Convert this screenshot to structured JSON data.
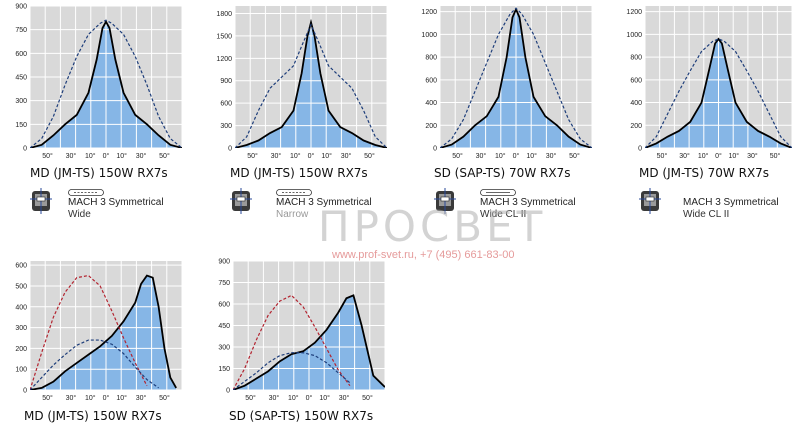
{
  "chart_data": [
    {
      "type": "line",
      "title": "MD (JM-TS) 150W RX7s",
      "legend_line1": "MACH 3 Symmetrical",
      "legend_line2": "Wide",
      "yticks": [
        0,
        150,
        300,
        450,
        600,
        750,
        900
      ],
      "ylim": [
        0,
        900
      ],
      "xlabels": [
        "50°",
        "30°",
        "10°",
        "0°",
        "10°",
        "30°",
        "50°"
      ],
      "series": [
        {
          "fill": true,
          "points": [
            [
              -65,
              0
            ],
            [
              -55,
              20
            ],
            [
              -45,
              80
            ],
            [
              -35,
              150
            ],
            [
              -25,
              210
            ],
            [
              -15,
              350
            ],
            [
              -8,
              560
            ],
            [
              -3,
              760
            ],
            [
              0,
              800
            ],
            [
              3,
              760
            ],
            [
              8,
              560
            ],
            [
              15,
              350
            ],
            [
              25,
              210
            ],
            [
              35,
              150
            ],
            [
              45,
              80
            ],
            [
              55,
              20
            ],
            [
              65,
              0
            ]
          ]
        },
        {
          "dashed": true,
          "points": [
            [
              -65,
              0
            ],
            [
              -55,
              60
            ],
            [
              -45,
              200
            ],
            [
              -35,
              400
            ],
            [
              -25,
              580
            ],
            [
              -15,
              720
            ],
            [
              -5,
              790
            ],
            [
              0,
              810
            ],
            [
              5,
              790
            ],
            [
              15,
              720
            ],
            [
              25,
              580
            ],
            [
              35,
              400
            ],
            [
              45,
              200
            ],
            [
              55,
              60
            ],
            [
              65,
              0
            ]
          ]
        }
      ]
    },
    {
      "type": "line",
      "title": "MD (JM-TS) 150W RX7s",
      "legend_line1": "MACH 3 Symmetrical",
      "legend_line2": "Narrow",
      "yticks": [
        0,
        300,
        600,
        900,
        1200,
        1500,
        1800
      ],
      "ylim": [
        0,
        1900
      ],
      "xlabels": [
        "50°",
        "30°",
        "10°",
        "0°",
        "10°",
        "30°",
        "50°"
      ],
      "series": [
        {
          "fill": true,
          "points": [
            [
              -65,
              0
            ],
            [
              -55,
              40
            ],
            [
              -45,
              100
            ],
            [
              -35,
              200
            ],
            [
              -25,
              280
            ],
            [
              -15,
              500
            ],
            [
              -8,
              1000
            ],
            [
              -3,
              1500
            ],
            [
              0,
              1680
            ],
            [
              3,
              1500
            ],
            [
              8,
              1000
            ],
            [
              15,
              500
            ],
            [
              25,
              280
            ],
            [
              35,
              200
            ],
            [
              45,
              100
            ],
            [
              55,
              40
            ],
            [
              65,
              0
            ]
          ]
        },
        {
          "dashed": true,
          "points": [
            [
              -65,
              0
            ],
            [
              -55,
              150
            ],
            [
              -45,
              500
            ],
            [
              -35,
              800
            ],
            [
              -25,
              950
            ],
            [
              -15,
              1100
            ],
            [
              -7,
              1400
            ],
            [
              0,
              1650
            ],
            [
              7,
              1400
            ],
            [
              15,
              1100
            ],
            [
              25,
              950
            ],
            [
              35,
              800
            ],
            [
              45,
              500
            ],
            [
              55,
              150
            ],
            [
              65,
              0
            ]
          ]
        }
      ]
    },
    {
      "type": "line",
      "title": "SD (SAP-TS) 70W RX7s",
      "legend_line1": "MACH 3 Symmetrical",
      "legend_line2": "Wide CL II",
      "yticks": [
        0,
        200,
        400,
        600,
        800,
        1000,
        1200
      ],
      "ylim": [
        0,
        1250
      ],
      "xlabels": [
        "50°",
        "30°",
        "10°",
        "0°",
        "10°",
        "30°",
        "50°"
      ],
      "series": [
        {
          "fill": true,
          "points": [
            [
              -65,
              0
            ],
            [
              -55,
              30
            ],
            [
              -45,
              100
            ],
            [
              -35,
              200
            ],
            [
              -25,
              280
            ],
            [
              -15,
              450
            ],
            [
              -8,
              800
            ],
            [
              -3,
              1150
            ],
            [
              0,
              1220
            ],
            [
              3,
              1150
            ],
            [
              8,
              800
            ],
            [
              15,
              450
            ],
            [
              25,
              280
            ],
            [
              35,
              200
            ],
            [
              45,
              100
            ],
            [
              55,
              30
            ],
            [
              65,
              0
            ]
          ]
        },
        {
          "dashed": true,
          "points": [
            [
              -65,
              0
            ],
            [
              -55,
              80
            ],
            [
              -45,
              250
            ],
            [
              -35,
              500
            ],
            [
              -25,
              750
            ],
            [
              -15,
              1000
            ],
            [
              -5,
              1180
            ],
            [
              0,
              1230
            ],
            [
              5,
              1180
            ],
            [
              15,
              1000
            ],
            [
              25,
              750
            ],
            [
              35,
              500
            ],
            [
              45,
              250
            ],
            [
              55,
              80
            ],
            [
              65,
              0
            ]
          ]
        }
      ]
    },
    {
      "type": "line",
      "title": "MD (JM-TS) 70W RX7s",
      "legend_line1": "MACH 3 Symmetrical",
      "legend_line2": "Wide CL II",
      "yticks": [
        0,
        200,
        400,
        600,
        800,
        1000,
        1200
      ],
      "ylim": [
        0,
        1250
      ],
      "xlabels": [
        "50°",
        "30°",
        "10°",
        "0°",
        "10°",
        "30°",
        "50°"
      ],
      "series": [
        {
          "fill": true,
          "points": [
            [
              -65,
              0
            ],
            [
              -55,
              40
            ],
            [
              -45,
              100
            ],
            [
              -35,
              150
            ],
            [
              -25,
              230
            ],
            [
              -15,
              400
            ],
            [
              -8,
              700
            ],
            [
              -3,
              920
            ],
            [
              0,
              960
            ],
            [
              3,
              920
            ],
            [
              8,
              700
            ],
            [
              15,
              400
            ],
            [
              25,
              230
            ],
            [
              35,
              150
            ],
            [
              45,
              100
            ],
            [
              55,
              40
            ],
            [
              65,
              0
            ]
          ]
        },
        {
          "dashed": true,
          "points": [
            [
              -65,
              0
            ],
            [
              -55,
              100
            ],
            [
              -45,
              300
            ],
            [
              -35,
              500
            ],
            [
              -25,
              680
            ],
            [
              -15,
              850
            ],
            [
              -5,
              940
            ],
            [
              0,
              960
            ],
            [
              5,
              940
            ],
            [
              15,
              850
            ],
            [
              25,
              680
            ],
            [
              35,
              500
            ],
            [
              45,
              300
            ],
            [
              55,
              100
            ],
            [
              65,
              0
            ]
          ]
        }
      ]
    },
    {
      "type": "line",
      "title": "MD (JM-TS) 150W RX7s",
      "legend_line1": "",
      "legend_line2": "",
      "yticks": [
        0,
        100,
        200,
        300,
        400,
        500,
        600
      ],
      "ylim": [
        0,
        620
      ],
      "xlabels": [
        "50°",
        "30°",
        "10°",
        "0°",
        "10°",
        "30°",
        "50°"
      ],
      "series": [
        {
          "fill": true,
          "points": [
            [
              -65,
              0
            ],
            [
              -55,
              10
            ],
            [
              -45,
              40
            ],
            [
              -35,
              90
            ],
            [
              -25,
              130
            ],
            [
              -15,
              170
            ],
            [
              -5,
              210
            ],
            [
              5,
              260
            ],
            [
              15,
              330
            ],
            [
              25,
              420
            ],
            [
              30,
              510
            ],
            [
              35,
              550
            ],
            [
              40,
              540
            ],
            [
              45,
              400
            ],
            [
              50,
              200
            ],
            [
              55,
              60
            ],
            [
              60,
              10
            ]
          ]
        },
        {
          "dashed": true,
          "red": true,
          "points": [
            [
              -65,
              0
            ],
            [
              -55,
              180
            ],
            [
              -45,
              350
            ],
            [
              -35,
              470
            ],
            [
              -25,
              540
            ],
            [
              -15,
              550
            ],
            [
              -5,
              500
            ],
            [
              5,
              380
            ],
            [
              15,
              250
            ],
            [
              25,
              130
            ],
            [
              35,
              20
            ]
          ]
        },
        {
          "dashed": true,
          "points": [
            [
              -65,
              0
            ],
            [
              -55,
              60
            ],
            [
              -45,
              120
            ],
            [
              -35,
              170
            ],
            [
              -25,
              215
            ],
            [
              -15,
              240
            ],
            [
              -5,
              240
            ],
            [
              5,
              220
            ],
            [
              15,
              175
            ],
            [
              25,
              110
            ],
            [
              35,
              50
            ],
            [
              45,
              10
            ]
          ]
        }
      ]
    },
    {
      "type": "line",
      "title": "SD (SAP-TS) 150W RX7s",
      "legend_line1": "",
      "legend_line2": "",
      "yticks": [
        0,
        150,
        300,
        450,
        600,
        750,
        900
      ],
      "ylim": [
        0,
        900
      ],
      "xlabels": [
        "50°",
        "30°",
        "10°",
        "0°",
        "10°",
        "30°",
        "50°"
      ],
      "series": [
        {
          "fill": true,
          "points": [
            [
              -65,
              0
            ],
            [
              -55,
              30
            ],
            [
              -45,
              80
            ],
            [
              -35,
              130
            ],
            [
              -25,
              200
            ],
            [
              -15,
              250
            ],
            [
              -5,
              270
            ],
            [
              5,
              330
            ],
            [
              15,
              420
            ],
            [
              25,
              540
            ],
            [
              32,
              640
            ],
            [
              38,
              660
            ],
            [
              45,
              450
            ],
            [
              55,
              100
            ],
            [
              65,
              20
            ]
          ]
        },
        {
          "dashed": true,
          "red": true,
          "points": [
            [
              -65,
              0
            ],
            [
              -55,
              150
            ],
            [
              -45,
              350
            ],
            [
              -35,
              520
            ],
            [
              -25,
              620
            ],
            [
              -15,
              660
            ],
            [
              -5,
              580
            ],
            [
              5,
              440
            ],
            [
              15,
              290
            ],
            [
              25,
              140
            ],
            [
              35,
              30
            ]
          ]
        },
        {
          "dashed": true,
          "points": [
            [
              -65,
              0
            ],
            [
              -55,
              60
            ],
            [
              -45,
              120
            ],
            [
              -35,
              190
            ],
            [
              -25,
              240
            ],
            [
              -15,
              260
            ],
            [
              -5,
              260
            ],
            [
              5,
              240
            ],
            [
              15,
              190
            ],
            [
              25,
              120
            ],
            [
              35,
              50
            ]
          ]
        }
      ]
    }
  ],
  "watermark": {
    "brand": "ПРОСВЕТ",
    "contact": "www.prof-svet.ru, +7 (495) 661-83-00"
  },
  "icons": {
    "lamp": "reflector-lamp-icon",
    "tube": "tube-lamp-icon"
  },
  "colors": {
    "fill": "#86b6e6",
    "grid": "#cfcfcf",
    "panel_bg": "#d9d9d9",
    "dashed_blue": "#1d3d7a",
    "dashed_red": "#b3232f",
    "solid": "#000000"
  }
}
